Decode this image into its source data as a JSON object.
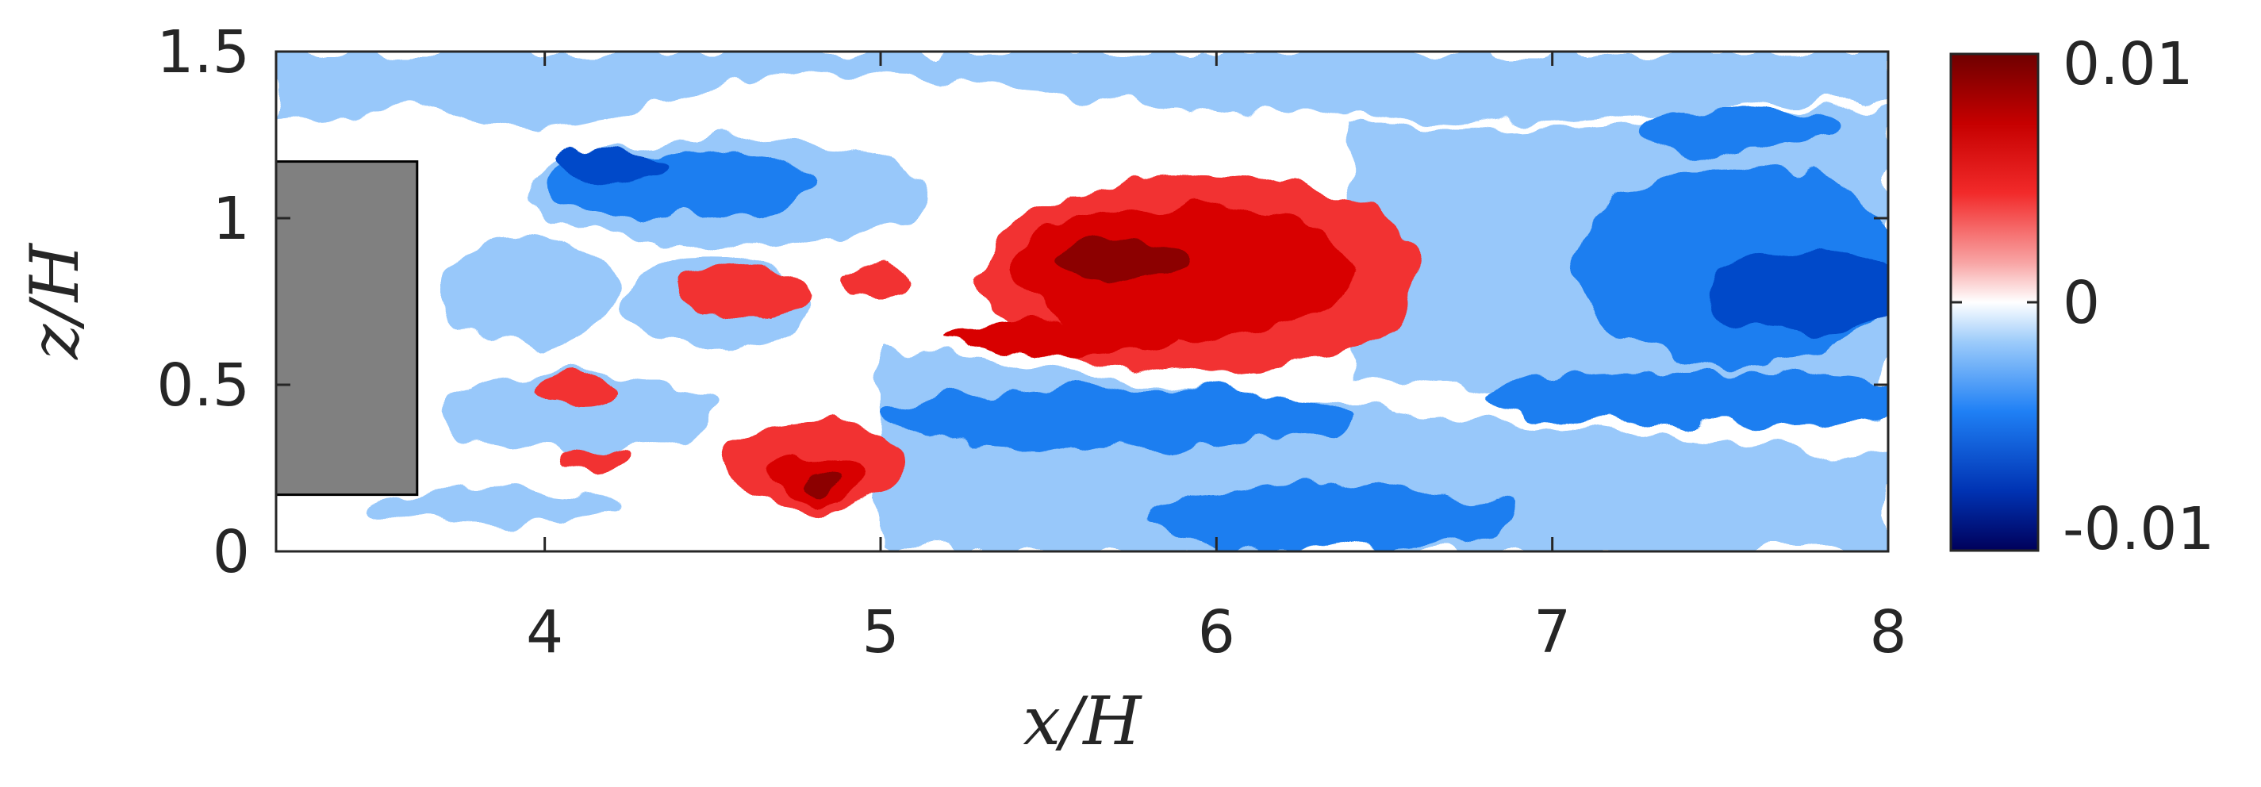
{
  "chart_data": {
    "type": "heatmap",
    "title": "",
    "xlabel": "x/H",
    "ylabel": "z/H",
    "xlim": [
      3.2,
      8
    ],
    "ylim": [
      0,
      1.5
    ],
    "x_ticks": [
      "4",
      "5",
      "6",
      "7",
      "8"
    ],
    "y_ticks": [
      "0",
      "0.5",
      "1",
      "1.5"
    ],
    "grid": false,
    "colorbar": {
      "range": [
        -0.01,
        0.01
      ],
      "tick_labels": [
        "-0.01",
        "0",
        "0.01"
      ],
      "levels": [
        -0.01,
        -0.0075,
        -0.005,
        -0.0025,
        -0.001,
        0.001,
        0.0025,
        0.005,
        0.0075,
        0.01
      ],
      "colors": [
        "#000a73",
        "#0049c9",
        "#1a7ef0",
        "#98c8fa",
        "#ffffff",
        "#f9a5a5",
        "#f23030",
        "#d80000",
        "#8c0000"
      ],
      "placement": "right"
    },
    "obstacle": {
      "x": [
        3.2,
        3.62
      ],
      "z": [
        0.17,
        1.17
      ],
      "color": "#808080"
    },
    "field_regions": [
      {
        "level": -0.0025,
        "shape": "band",
        "z_top": [
          [
            3.2,
            1.5
          ],
          [
            8.0,
            1.5
          ]
        ],
        "z_bottom": [
          [
            3.2,
            1.3
          ],
          [
            3.6,
            1.32
          ],
          [
            4.0,
            1.26
          ],
          [
            4.4,
            1.36
          ],
          [
            4.8,
            1.44
          ],
          [
            5.2,
            1.42
          ],
          [
            5.6,
            1.36
          ],
          [
            6.0,
            1.32
          ],
          [
            6.4,
            1.32
          ],
          [
            6.8,
            1.28
          ],
          [
            7.2,
            1.3
          ],
          [
            7.6,
            1.35
          ],
          [
            8.0,
            1.35
          ]
        ]
      },
      {
        "level": -0.0025,
        "shape": "band",
        "z_top": [
          [
            6.4,
            1.3
          ],
          [
            6.8,
            1.26
          ],
          [
            7.2,
            1.28
          ],
          [
            7.6,
            1.33
          ],
          [
            8.0,
            1.33
          ]
        ],
        "z_bottom": [
          [
            6.4,
            0.52
          ],
          [
            6.8,
            0.48
          ],
          [
            7.2,
            0.42
          ],
          [
            7.6,
            0.38
          ],
          [
            8.0,
            0.4
          ]
        ]
      },
      {
        "level": -0.0025,
        "shape": "band",
        "z_top": [
          [
            5.0,
            0.62
          ],
          [
            5.4,
            0.56
          ],
          [
            5.8,
            0.5
          ],
          [
            6.2,
            0.46
          ],
          [
            6.6,
            0.42
          ],
          [
            7.0,
            0.38
          ],
          [
            7.4,
            0.34
          ],
          [
            7.8,
            0.3
          ],
          [
            8.0,
            0.28
          ]
        ],
        "z_bottom": [
          [
            5.0,
            0.0
          ],
          [
            8.0,
            0.0
          ]
        ]
      },
      {
        "level": -0.0025,
        "shape": "blob",
        "cx": 4.55,
        "cz": 1.08,
        "rx": 0.6,
        "rz": 0.16
      },
      {
        "level": -0.0025,
        "shape": "blob",
        "cx": 3.95,
        "cz": 0.78,
        "rx": 0.26,
        "rz": 0.16
      },
      {
        "level": -0.0025,
        "shape": "blob",
        "cx": 4.1,
        "cz": 0.42,
        "rx": 0.42,
        "rz": 0.12
      },
      {
        "level": -0.0025,
        "shape": "blob",
        "cx": 3.85,
        "cz": 0.14,
        "rx": 0.36,
        "rz": 0.05
      },
      {
        "level": -0.0025,
        "shape": "blob",
        "cx": 4.5,
        "cz": 0.75,
        "rx": 0.28,
        "rz": 0.14
      },
      {
        "level": -0.005,
        "shape": "blob",
        "cx": 7.55,
        "cz": 0.86,
        "rx": 0.48,
        "rz": 0.3
      },
      {
        "level": -0.005,
        "shape": "blob",
        "cx": 7.5,
        "cz": 0.46,
        "rx": 0.7,
        "rz": 0.08
      },
      {
        "level": -0.005,
        "shape": "blob",
        "cx": 7.55,
        "cz": 1.27,
        "rx": 0.3,
        "rz": 0.07
      },
      {
        "level": -0.005,
        "shape": "blob",
        "cx": 6.35,
        "cz": 0.1,
        "rx": 0.55,
        "rz": 0.1
      },
      {
        "level": -0.005,
        "shape": "blob",
        "cx": 5.7,
        "cz": 0.4,
        "rx": 0.7,
        "rz": 0.09
      },
      {
        "level": -0.005,
        "shape": "blob",
        "cx": 4.4,
        "cz": 1.1,
        "rx": 0.4,
        "rz": 0.1
      },
      {
        "level": -0.0075,
        "shape": "blob",
        "cx": 7.75,
        "cz": 0.78,
        "rx": 0.3,
        "rz": 0.13
      },
      {
        "level": -0.0075,
        "shape": "blob",
        "cx": 4.2,
        "cz": 1.16,
        "rx": 0.18,
        "rz": 0.045
      },
      {
        "level": 0.0025,
        "shape": "blob",
        "cx": 5.95,
        "cz": 0.83,
        "rx": 0.65,
        "rz": 0.3
      },
      {
        "level": 0.0025,
        "shape": "blob",
        "cx": 4.8,
        "cz": 0.26,
        "rx": 0.27,
        "rz": 0.13
      },
      {
        "level": 0.0025,
        "shape": "blob",
        "cx": 4.6,
        "cz": 0.78,
        "rx": 0.2,
        "rz": 0.08
      },
      {
        "level": 0.0025,
        "shape": "blob",
        "cx": 4.1,
        "cz": 0.48,
        "rx": 0.12,
        "rz": 0.05
      },
      {
        "level": 0.0025,
        "shape": "blob",
        "cx": 4.15,
        "cz": 0.28,
        "rx": 0.1,
        "rz": 0.04
      },
      {
        "level": 0.0025,
        "shape": "blob",
        "cx": 5.0,
        "cz": 0.82,
        "rx": 0.1,
        "rz": 0.05
      },
      {
        "level": 0.005,
        "shape": "blob",
        "cx": 5.9,
        "cz": 0.84,
        "rx": 0.52,
        "rz": 0.2
      },
      {
        "level": 0.005,
        "shape": "blob",
        "cx": 5.55,
        "cz": 0.64,
        "rx": 0.35,
        "rz": 0.05
      },
      {
        "level": 0.005,
        "shape": "blob",
        "cx": 4.82,
        "cz": 0.22,
        "rx": 0.13,
        "rz": 0.06
      },
      {
        "level": 0.0075,
        "shape": "blob",
        "cx": 5.72,
        "cz": 0.87,
        "rx": 0.2,
        "rz": 0.06
      },
      {
        "level": 0.0075,
        "shape": "blob",
        "cx": 4.82,
        "cz": 0.21,
        "rx": 0.05,
        "rz": 0.025
      }
    ]
  }
}
